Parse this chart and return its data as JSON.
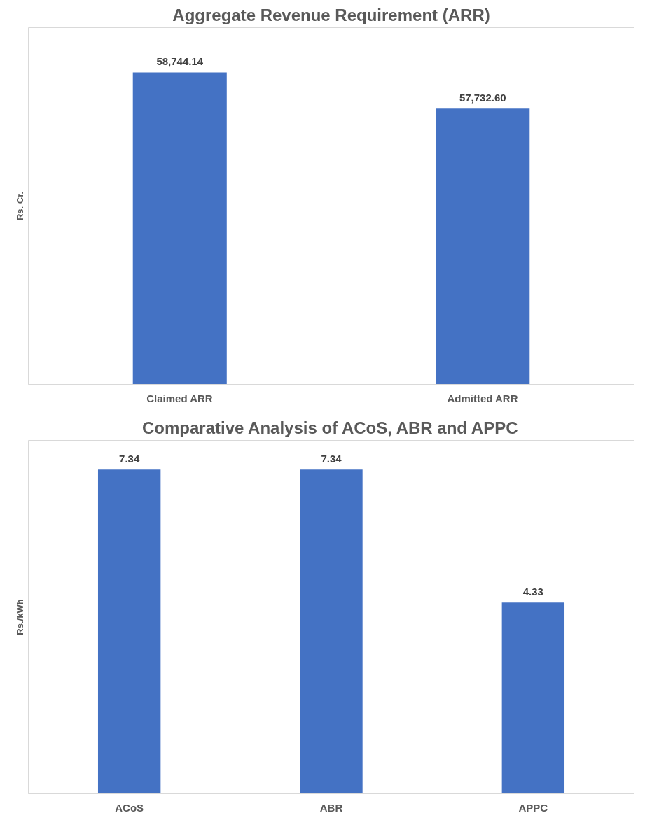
{
  "chart_data": [
    {
      "type": "bar",
      "title": "Aggregate Revenue Requirement (ARR)",
      "ylabel": "Rs. Cr.",
      "categories": [
        "Claimed ARR",
        "Admitted ARR"
      ],
      "values": [
        58744.14,
        57732.6
      ],
      "color": "#4472c4",
      "value_labels": [
        "58,744.14",
        "57,732.60"
      ],
      "ylim": [
        50000,
        60000
      ]
    },
    {
      "type": "bar",
      "title": "Comparative Analysis of ACoS, ABR and APPC",
      "ylabel": "Rs./kWh",
      "categories": [
        "ACoS",
        "ABR",
        "APPC"
      ],
      "values": [
        7.34,
        7.34,
        4.33
      ],
      "color": "#4472c4",
      "value_labels": [
        "7.34",
        "7.34",
        "4.33"
      ],
      "ylim": [
        0,
        8
      ]
    }
  ]
}
